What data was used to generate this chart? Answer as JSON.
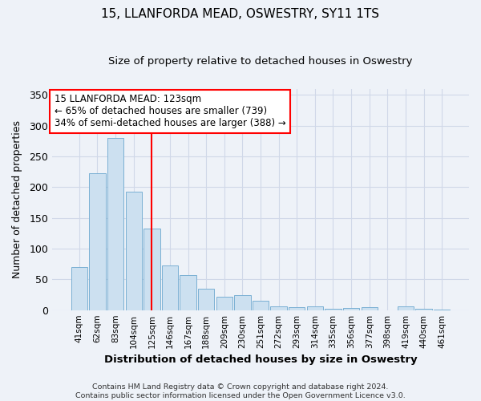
{
  "title": "15, LLANFORDA MEAD, OSWESTRY, SY11 1TS",
  "subtitle": "Size of property relative to detached houses in Oswestry",
  "xlabel_bottom": "Distribution of detached houses by size in Oswestry",
  "ylabel": "Number of detached properties",
  "footer": "Contains HM Land Registry data © Crown copyright and database right 2024.\nContains public sector information licensed under the Open Government Licence v3.0.",
  "bar_labels": [
    "41sqm",
    "62sqm",
    "83sqm",
    "104sqm",
    "125sqm",
    "146sqm",
    "167sqm",
    "188sqm",
    "209sqm",
    "230sqm",
    "251sqm",
    "272sqm",
    "293sqm",
    "314sqm",
    "335sqm",
    "356sqm",
    "377sqm",
    "398sqm",
    "419sqm",
    "440sqm",
    "461sqm"
  ],
  "bar_values": [
    70,
    223,
    280,
    193,
    133,
    73,
    57,
    35,
    22,
    25,
    15,
    6,
    5,
    6,
    2,
    4,
    5,
    0,
    6,
    2,
    1
  ],
  "bar_color": "#cce0f0",
  "bar_edge_color": "#7ab0d4",
  "background_color": "#eef2f8",
  "vline_x": 4.0,
  "vline_color": "red",
  "annotation_line1": "15 LLANFORDA MEAD: 123sqm",
  "annotation_line2": "← 65% of detached houses are smaller (739)",
  "annotation_line3": "34% of semi-detached houses are larger (388) →",
  "annotation_box_color": "white",
  "annotation_box_edgecolor": "red",
  "ylim": [
    0,
    360
  ],
  "yticks": [
    0,
    50,
    100,
    150,
    200,
    250,
    300,
    350
  ]
}
